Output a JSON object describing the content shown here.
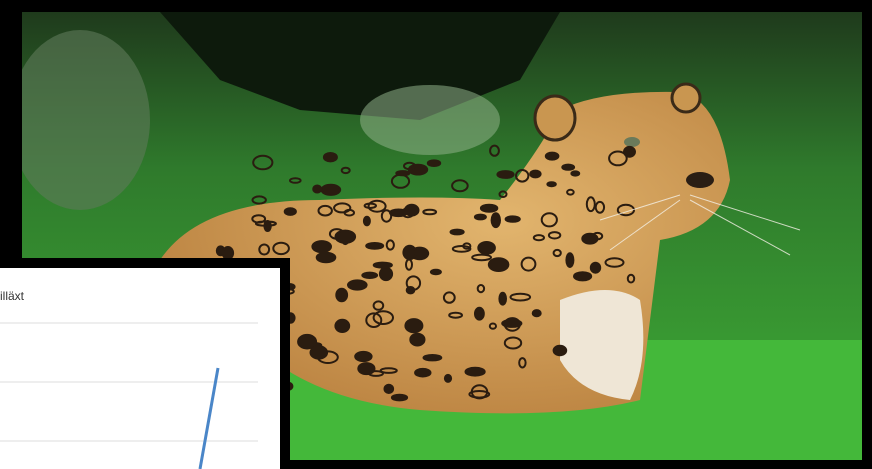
{
  "inset": {
    "title": "illäxt"
  }
}
